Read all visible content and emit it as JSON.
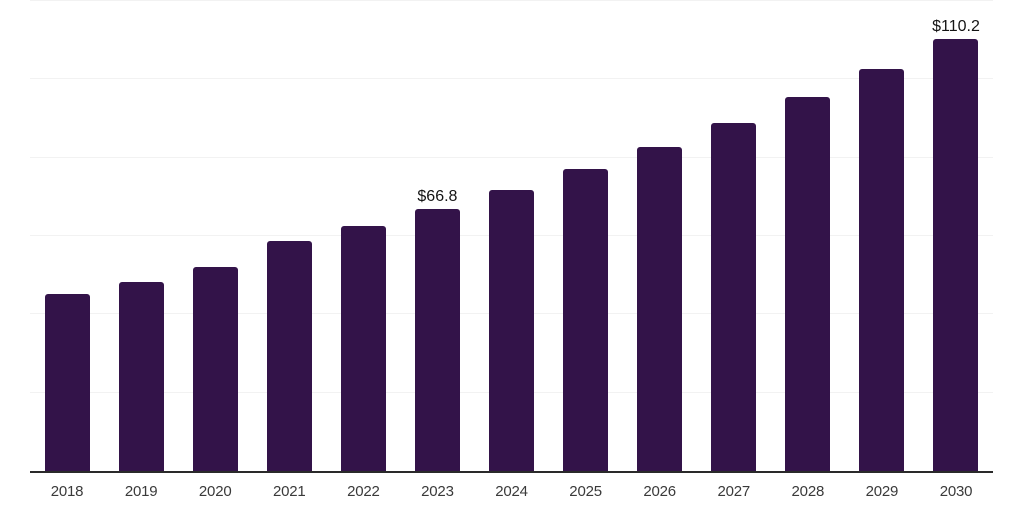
{
  "chart": {
    "background_color": "#ffffff",
    "bar_color": "#331349",
    "axis_line_color": "#2a2a2a",
    "gridline_color": "#f2f2f2",
    "tick_label_color": "#3a3a3a",
    "value_label_color": "#141414"
  },
  "chart_data": {
    "type": "bar",
    "title": "",
    "xlabel": "",
    "ylabel": "",
    "categories": [
      "2018",
      "2019",
      "2020",
      "2021",
      "2022",
      "2023",
      "2024",
      "2025",
      "2026",
      "2027",
      "2028",
      "2029",
      "2030"
    ],
    "values": [
      45.3,
      48.3,
      52.2,
      58.6,
      62.6,
      66.8,
      71.8,
      77.1,
      82.8,
      88.9,
      95.5,
      102.6,
      110.2
    ],
    "data_labels": [
      null,
      null,
      null,
      null,
      null,
      "$66.8",
      null,
      null,
      null,
      null,
      null,
      null,
      "$110.2"
    ],
    "ylim": [
      0,
      120
    ],
    "gridline_step": 20,
    "grid": true,
    "y_tick_labels_shown": false,
    "legend": false
  }
}
